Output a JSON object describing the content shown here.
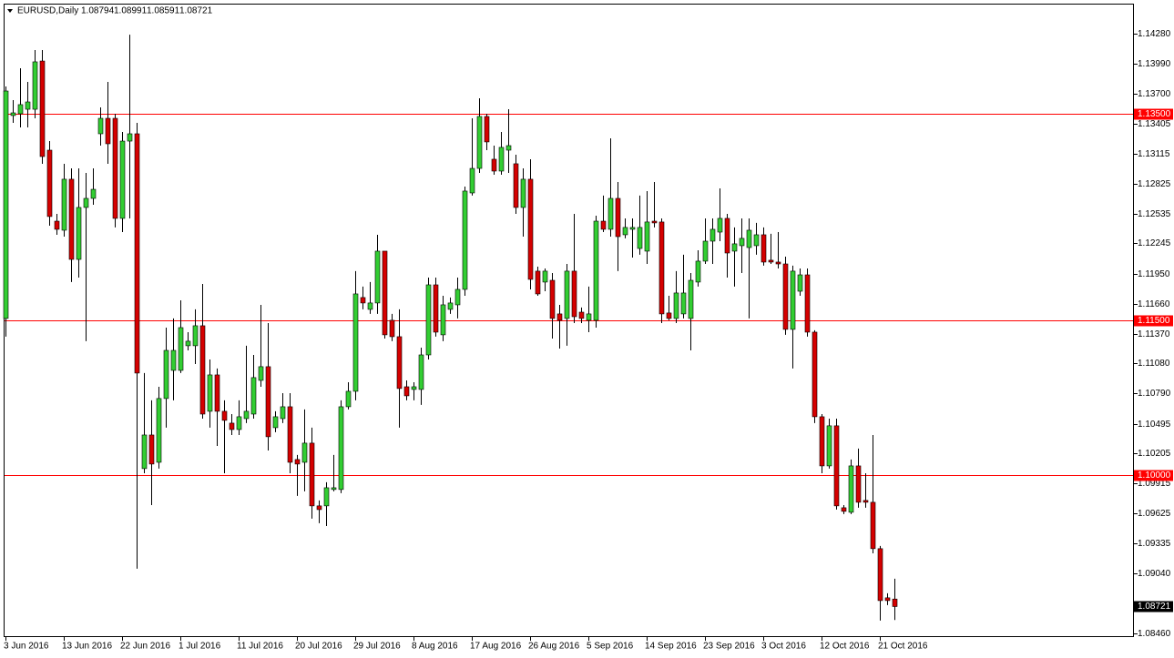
{
  "chart_data": {
    "type": "candlestick",
    "title": "EURUSD,Daily",
    "categories": [
      "3 Jun 2016",
      null,
      null,
      null,
      null,
      null,
      null,
      null,
      "13 Jun 2016",
      null,
      null,
      null,
      null,
      null,
      null,
      null,
      "22 Jun 2016",
      null,
      null,
      null,
      null,
      null,
      null,
      null,
      "1 Jul 2016",
      null,
      null,
      null,
      null,
      null,
      null,
      null,
      "11 Jul 2016",
      null,
      null,
      null,
      null,
      null,
      null,
      null,
      "20 Jul 2016",
      null,
      null,
      null,
      null,
      null,
      null,
      null,
      "29 Jul 2016",
      null,
      null,
      null,
      null,
      null,
      null,
      null,
      "8 Aug 2016",
      null,
      null,
      null,
      null,
      null,
      null,
      null,
      "17 Aug 2016",
      null,
      null,
      null,
      null,
      null,
      null,
      null,
      "26 Aug 2016",
      null,
      null,
      null,
      null,
      null,
      null,
      null,
      "5 Sep 2016",
      null,
      null,
      null,
      null,
      null,
      null,
      null,
      "14 Sep 2016",
      null,
      null,
      null,
      null,
      null,
      null,
      null,
      "23 Sep 2016",
      null,
      null,
      null,
      null,
      null,
      null,
      null,
      "3 Oct 2016",
      null,
      null,
      null,
      null,
      null,
      null,
      null,
      "12 Oct 2016",
      null,
      null,
      null,
      null,
      null,
      null,
      null,
      "21 Oct 2016",
      null,
      null
    ],
    "open": [
      1.11517,
      1.13486,
      1.13503,
      1.13547,
      1.13547,
      1.14015,
      1.1315,
      1.12461,
      1.12373,
      1.12868,
      1.1209,
      1.12594,
      1.12682,
      1.13309,
      1.13459,
      1.13459,
      1.12488,
      1.13238,
      1.13309,
      1.1006,
      1.10386,
      1.10121,
      1.1074,
      1.11013,
      1.11013,
      1.11252,
      1.11252,
      1.11446,
      1.10616,
      1.10969,
      1.10616,
      1.10501,
      1.10439,
      1.10545,
      1.10589,
      1.10916,
      1.11049,
      1.10457,
      1.10545,
      1.1066,
      1.10148,
      1.10121,
      1.10307,
      1.09698,
      1.09698,
      1.09857,
      1.09857,
      1.1066,
      1.1081,
      1.1172,
      1.11605,
      1.11667,
      1.1217,
      1.11499,
      1.1134,
      1.10854,
      1.10828,
      1.10828,
      1.11163,
      1.11843,
      1.11358,
      1.11605,
      1.11649,
      1.11799,
      1.12735,
      1.12973,
      1.13477,
      1.13062,
      1.12947,
      1.1315,
      1.13018,
      1.12594,
      1.12868,
      1.11976,
      1.1187,
      1.11887,
      1.11561,
      1.11517,
      1.11976,
      1.11578,
      1.11499,
      1.11499,
      1.12461,
      1.12382,
      1.12682,
      1.12329,
      1.12382,
      1.12196,
      1.1217,
      1.12461,
      1.12453,
      1.1157,
      1.11517,
      1.11561,
      1.11517,
      1.1187,
      1.12073,
      1.12267,
      1.12355,
      1.12488,
      1.1217,
      1.12223,
      1.12205,
      1.12223,
      1.12329,
      1.12082,
      1.12064,
      1.12046,
      1.11411,
      1.11781,
      1.1194,
      1.11384,
      1.10563,
      1.10086,
      1.10475,
      1.0968,
      1.09636,
      1.10086,
      1.09751,
      1.09733,
      1.09283,
      1.08806,
      1.08794
    ],
    "high": [
      1.13768,
      1.13636,
      1.13945,
      1.13812,
      1.14121,
      1.14121,
      1.13238,
      1.12532,
      1.13018,
      1.12973,
      1.12973,
      1.12929,
      1.12973,
      1.13565,
      1.13812,
      1.13503,
      1.13327,
      1.14271,
      1.13415,
      1.10987,
      1.10722,
      1.10854,
      1.11428,
      1.11517,
      1.11693,
      1.11384,
      1.11605,
      1.11852,
      1.11119,
      1.11031,
      1.10722,
      1.10589,
      1.10722,
      1.11252,
      1.11163,
      1.11649,
      1.11472,
      1.10616,
      1.10792,
      1.10792,
      1.10192,
      1.10634,
      1.10457,
      1.09751,
      1.09927,
      1.10192,
      1.10722,
      1.10898,
      1.11976,
      1.11826,
      1.1187,
      1.12329,
      1.1217,
      1.11561,
      1.11605,
      1.10916,
      1.10898,
      1.11234,
      1.11914,
      1.11914,
      1.11737,
      1.1172,
      1.11914,
      1.12797,
      1.13459,
      1.13653,
      1.13503,
      1.13194,
      1.13327,
      1.13547,
      1.13106,
      1.12973,
      1.13062,
      1.1202,
      1.12002,
      1.11958,
      1.11649,
      1.12046,
      1.12532,
      1.11623,
      1.11826,
      1.12514,
      1.12709,
      1.13265,
      1.12841,
      1.12488,
      1.12488,
      1.12709,
      1.12753,
      1.12841,
      1.12488,
      1.11737,
      1.11976,
      1.12135,
      1.11958,
      1.12179,
      1.12488,
      1.12488,
      1.12779,
      1.12532,
      1.124,
      1.12488,
      1.12488,
      1.12444,
      1.124,
      1.12338,
      1.12355,
      1.12117,
      1.12029,
      1.12002,
      1.12002,
      1.11402,
      1.10589,
      1.10545,
      1.10545,
      1.09706,
      1.10148,
      1.10254,
      1.10015,
      1.10386,
      1.09309,
      1.0885,
      1.08991
    ],
    "low": [
      1.1134,
      1.13415,
      1.13371,
      1.13371,
      1.13459,
      1.13018,
      1.12417,
      1.12329,
      1.12311,
      1.1187,
      1.11914,
      1.11296,
      1.1262,
      1.13194,
      1.13018,
      1.124,
      1.12355,
      1.12488,
      1.09088,
      1.10015,
      1.09706,
      1.1006,
      1.10457,
      1.10722,
      1.10987,
      1.11207,
      1.11075,
      1.10545,
      1.10457,
      1.1028,
      1.10015,
      1.10386,
      1.10386,
      1.10501,
      1.10545,
      1.10854,
      1.10236,
      1.10413,
      1.10501,
      1.10015,
      1.09795,
      1.09839,
      1.09574,
      1.0953,
      1.09503,
      1.09839,
      1.09821,
      1.10634,
      1.10722,
      1.11605,
      1.11561,
      1.11561,
      1.11322,
      1.11296,
      1.10457,
      1.10722,
      1.10722,
      1.10678,
      1.11119,
      1.1134,
      1.11296,
      1.11561,
      1.11517,
      1.11737,
      1.12709,
      1.12929,
      1.1315,
      1.12912,
      1.12912,
      1.12929,
      1.12532,
      1.12311,
      1.11799,
      1.11737,
      1.11781,
      1.11322,
      1.11225,
      1.11252,
      1.11472,
      1.11472,
      1.11384,
      1.11428,
      1.12355,
      1.12311,
      1.11976,
      1.12294,
      1.12108,
      1.12135,
      1.12046,
      1.124,
      1.11472,
      1.11499,
      1.11472,
      1.11517,
      1.11207,
      1.11826,
      1.12046,
      1.12046,
      1.12267,
      1.11914,
      1.11826,
      1.11958,
      1.11517,
      1.12135,
      1.12029,
      1.12046,
      1.12002,
      1.11358,
      1.11031,
      1.11737,
      1.1134,
      1.10501,
      1.10015,
      1.1006,
      1.09662,
      1.09618,
      1.09618,
      1.0968,
      1.0968,
      1.09238,
      1.08585,
      1.08735,
      1.08591
    ],
    "close": [
      1.13724,
      1.13512,
      1.13592,
      1.13618,
      1.14007,
      1.13088,
      1.12506,
      1.12382,
      1.12868,
      1.1209,
      1.12594,
      1.12682,
      1.1277,
      1.13459,
      1.13212,
      1.12488,
      1.13238,
      1.13309,
      1.10987,
      1.10386,
      1.10104,
      1.1074,
      1.11207,
      1.11207,
      1.11428,
      1.11296,
      1.11446,
      1.10589,
      1.10969,
      1.10616,
      1.10528,
      1.10439,
      1.10563,
      1.10616,
      1.10943,
      1.11049,
      1.10369,
      1.10563,
      1.1066,
      1.10121,
      1.10104,
      1.10307,
      1.09698,
      1.09662,
      1.09874,
      1.09874,
      1.1066,
      1.1081,
      1.11755,
      1.11667,
      1.11667,
      1.1217,
      1.11358,
      1.1134,
      1.10837,
      1.10766,
      1.10854,
      1.11163,
      1.11843,
      1.11384,
      1.11649,
      1.11667,
      1.11799,
      1.12753,
      1.12973,
      1.13477,
      1.1323,
      1.12947,
      1.13177,
      1.13194,
      1.12594,
      1.12868,
      1.11896,
      1.11755,
      1.11976,
      1.11517,
      1.11499,
      1.11976,
      1.11534,
      1.11517,
      1.11561,
      1.12461,
      1.12382,
      1.12682,
      1.12311,
      1.124,
      1.124,
      1.124,
      1.12453,
      1.12444,
      1.11561,
      1.11517,
      1.11764,
      1.11764,
      1.11887,
      1.12073,
      1.12267,
      1.12382,
      1.12488,
      1.12152,
      1.12241,
      1.12294,
      1.12373,
      1.12329,
      1.12064,
      1.12064,
      1.12046,
      1.11411,
      1.11976,
      1.1194,
      1.11384,
      1.10563,
      1.10086,
      1.10475,
      1.09698,
      1.09645,
      1.10086,
      1.09733,
      1.09733,
      1.09283,
      1.08779,
      1.08779,
      1.08721
    ],
    "up_color": "#32cd32",
    "down_color": "#d40000",
    "ylim": [
      1.08425,
      1.14563
    ],
    "yticks": [
      {
        "value": 1.1428,
        "label": "1.14280"
      },
      {
        "value": 1.1399,
        "label": "1.13990"
      },
      {
        "value": 1.137,
        "label": "1.13700"
      },
      1.13405,
      1.13115,
      1.12825,
      1.12535,
      1.12245,
      {
        "value": 1.1195,
        "label": "1.11950"
      },
      {
        "value": 1.1166,
        "label": "1.11660"
      },
      {
        "value": 1.1137,
        "label": "1.11370"
      },
      {
        "value": 1.1108,
        "label": "1.11080"
      },
      {
        "value": 1.1079,
        "label": "1.10790"
      },
      1.10495,
      1.10205,
      1.09915,
      1.09625,
      1.09335,
      {
        "value": 1.0904,
        "label": "1.09040"
      },
      {
        "value": 1.0846,
        "label": "1.08460"
      }
    ],
    "levels": [
      {
        "value": 1.135,
        "label": "1.13500"
      },
      {
        "value": 1.115,
        "label": "1.11500"
      },
      {
        "value": 1.1,
        "label": "1.10000"
      }
    ],
    "level_color": "#ff0000"
  }
}
